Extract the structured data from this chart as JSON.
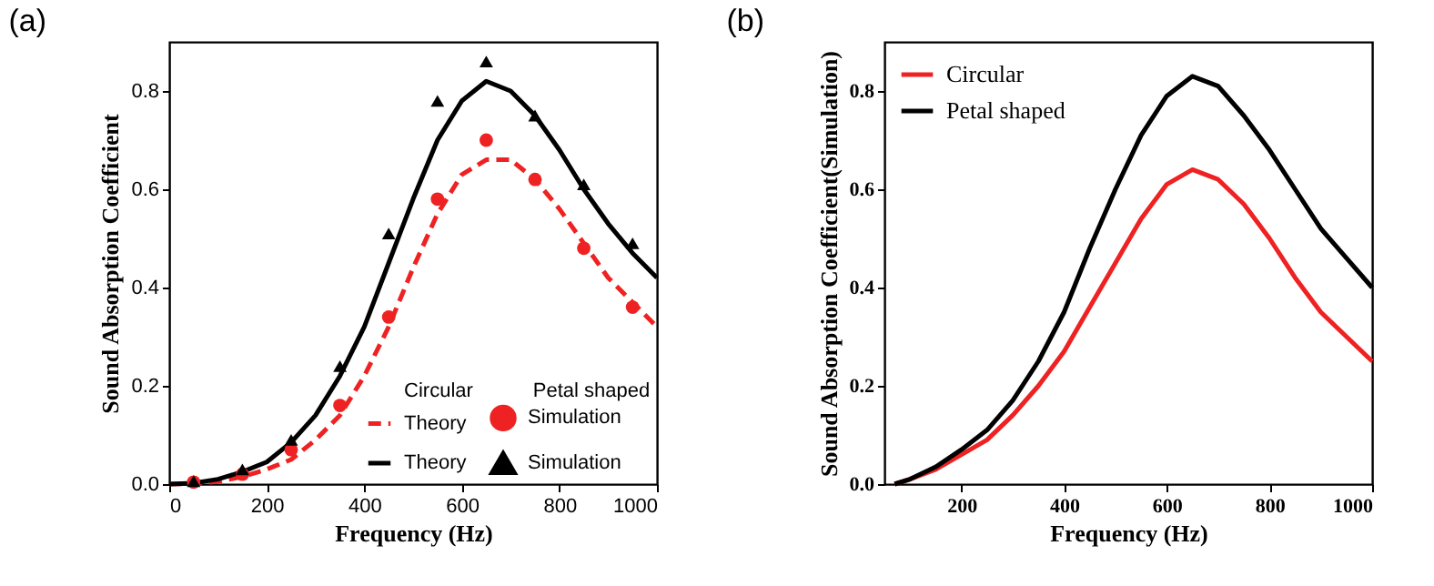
{
  "chart_data": [
    {
      "type": "line",
      "title": "(a)",
      "xlabel": "Frequency (Hz)",
      "ylabel": "Sound Absorption Coefficient",
      "xlim": [
        0,
        1000
      ],
      "ylim": [
        0,
        0.9
      ],
      "xticks": [
        0,
        200,
        400,
        600,
        800,
        1000
      ],
      "yticks": [
        {
          "value": 0,
          "label": "0.0"
        },
        0.2,
        0.4,
        0.6,
        0.8
      ],
      "legend": "bottom right",
      "annotations": [
        "Circular",
        "Petal shaped"
      ],
      "series": [
        {
          "name": "Theory",
          "line_style": "dashed",
          "color": "#ee2222",
          "x": [
            0,
            50,
            100,
            150,
            200,
            250,
            300,
            350,
            400,
            450,
            500,
            550,
            600,
            650,
            700,
            750,
            800,
            850,
            900,
            950,
            1000
          ],
          "values": [
            0,
            0.001,
            0.005,
            0.015,
            0.03,
            0.05,
            0.09,
            0.14,
            0.22,
            0.32,
            0.44,
            0.55,
            0.63,
            0.66,
            0.66,
            0.62,
            0.56,
            0.49,
            0.42,
            0.37,
            0.32
          ]
        },
        {
          "name": "Theory",
          "line_style": "solid",
          "color": "#000000",
          "x": [
            0,
            50,
            100,
            150,
            200,
            250,
            300,
            350,
            400,
            450,
            500,
            550,
            600,
            650,
            700,
            750,
            800,
            850,
            900,
            950,
            1000
          ],
          "values": [
            0,
            0.002,
            0.01,
            0.025,
            0.045,
            0.085,
            0.14,
            0.22,
            0.32,
            0.45,
            0.58,
            0.7,
            0.78,
            0.82,
            0.8,
            0.75,
            0.68,
            0.6,
            0.53,
            0.47,
            0.42
          ]
        },
        {
          "name": "Simulation",
          "type": "scatter",
          "marker": "circle",
          "color": "#ee2222",
          "x": [
            50,
            150,
            250,
            350,
            450,
            550,
            650,
            750,
            850,
            950
          ],
          "values": [
            0.004,
            0.02,
            0.07,
            0.16,
            0.34,
            0.58,
            0.7,
            0.62,
            0.48,
            0.36
          ]
        },
        {
          "name": "Simulation",
          "type": "scatter",
          "marker": "triangle",
          "color": "#000000",
          "x": [
            50,
            150,
            250,
            350,
            450,
            550,
            650,
            750,
            850,
            950
          ],
          "values": [
            0.006,
            0.03,
            0.09,
            0.24,
            0.51,
            0.78,
            0.86,
            0.75,
            0.61,
            0.49
          ]
        }
      ]
    },
    {
      "type": "line",
      "title": "(b)",
      "xlabel": "Frequency (Hz)",
      "ylabel": "Sound Absorption Coefficient(Simulation)",
      "xlim": [
        50,
        1000
      ],
      "ylim": [
        0,
        0.9
      ],
      "xticks": [
        200,
        400,
        600,
        800,
        1000
      ],
      "yticks": [
        {
          "value": 0,
          "label": "0.0"
        },
        0.2,
        0.4,
        0.6,
        0.8
      ],
      "legend": "top left",
      "series": [
        {
          "name": "Circular",
          "color": "#ee2222",
          "x": [
            70,
            100,
            150,
            200,
            250,
            300,
            350,
            400,
            450,
            500,
            550,
            600,
            650,
            700,
            750,
            800,
            850,
            900,
            950,
            1000
          ],
          "values": [
            0,
            0.01,
            0.03,
            0.06,
            0.09,
            0.14,
            0.2,
            0.27,
            0.36,
            0.45,
            0.54,
            0.61,
            0.64,
            0.62,
            0.57,
            0.5,
            0.42,
            0.35,
            0.3,
            0.25
          ]
        },
        {
          "name": "Petal shaped",
          "color": "#000000",
          "x": [
            70,
            100,
            150,
            200,
            250,
            300,
            350,
            400,
            450,
            500,
            550,
            600,
            650,
            700,
            750,
            800,
            850,
            900,
            950,
            1000
          ],
          "values": [
            0,
            0.01,
            0.035,
            0.07,
            0.11,
            0.17,
            0.25,
            0.35,
            0.48,
            0.6,
            0.71,
            0.79,
            0.83,
            0.81,
            0.75,
            0.68,
            0.6,
            0.52,
            0.46,
            0.4
          ]
        }
      ]
    }
  ]
}
